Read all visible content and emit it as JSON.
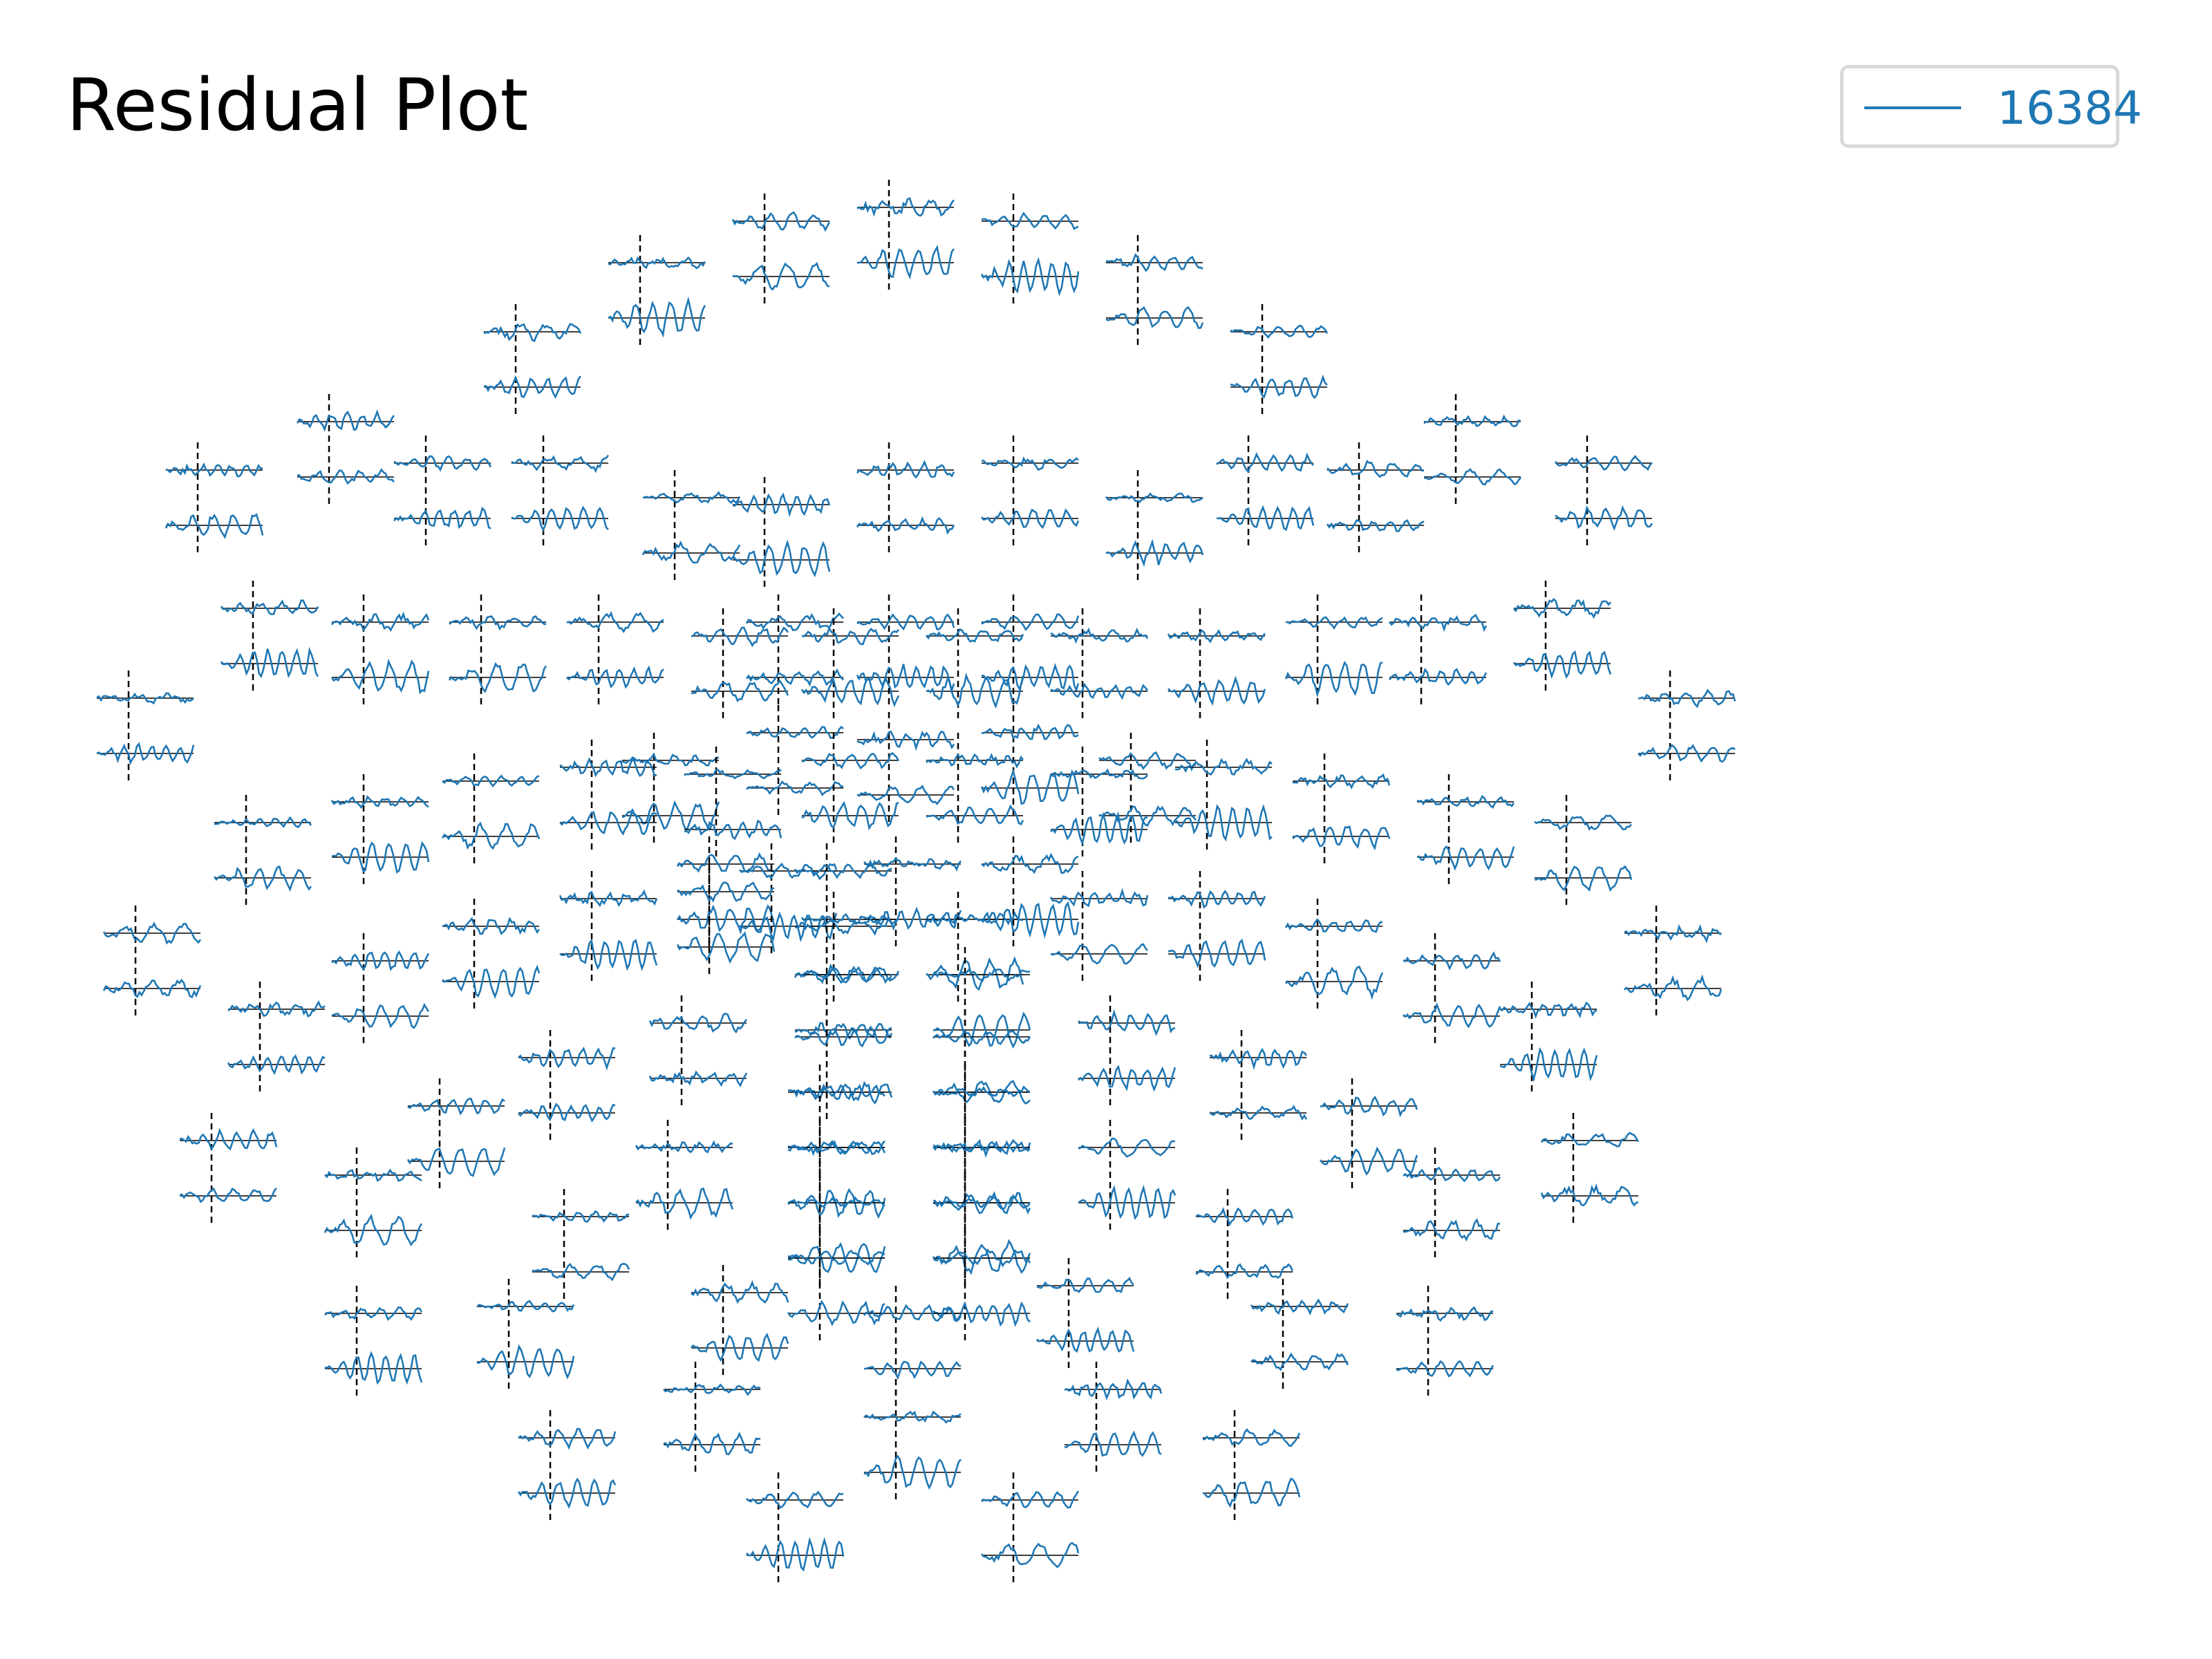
{
  "chart_data": {
    "type": "line",
    "title": "Residual Plot",
    "legend": {
      "placement": "top-right",
      "entries": [
        "16384"
      ]
    },
    "series": [
      {
        "name": "16384",
        "color": "#1f77b4"
      }
    ],
    "layout": "topographic sensor layout; each sensor shows two small residual time-course traces with a dashed black vertical marker at the event onset",
    "xlabel": "",
    "ylabel": "",
    "grid": false,
    "axes_visible": false,
    "colors": {
      "trace": "#1f77b4",
      "onset_marker": "#000000",
      "baseline": "#000000"
    }
  }
}
